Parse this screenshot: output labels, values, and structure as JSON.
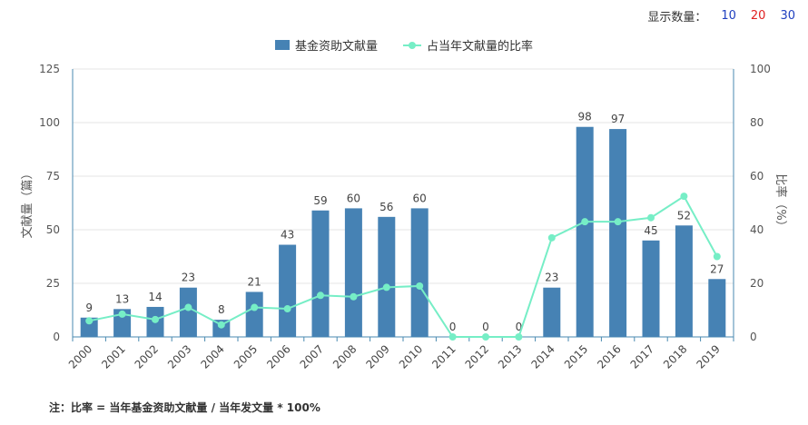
{
  "display_control": {
    "label": "显示数量：",
    "options": [
      {
        "label": "10",
        "color": "#1f3fbf"
      },
      {
        "label": "20",
        "color": "#e02020"
      },
      {
        "label": "30",
        "color": "#1f3fbf"
      }
    ]
  },
  "colors": {
    "bar": "#4682b4",
    "line": "#76eec6",
    "axis": "#4a8ab0"
  },
  "footnote": "注：比率 = 当年基金资助文献量 / 当年发文量 * 100%",
  "chart_data": {
    "type": "bar",
    "categories": [
      "2000",
      "2001",
      "2002",
      "2003",
      "2004",
      "2005",
      "2006",
      "2007",
      "2008",
      "2009",
      "2010",
      "2011",
      "2012",
      "2013",
      "2014",
      "2015",
      "2016",
      "2017",
      "2018",
      "2019"
    ],
    "series": [
      {
        "name": "基金资助文献量",
        "type": "bar",
        "axis": "left",
        "values": [
          9,
          13,
          14,
          23,
          8,
          21,
          43,
          59,
          60,
          56,
          60,
          0,
          0,
          0,
          23,
          98,
          97,
          45,
          52,
          27
        ]
      },
      {
        "name": "占当年文献量的比率",
        "type": "line",
        "axis": "right",
        "values": [
          6,
          8.5,
          6.5,
          11,
          4.5,
          11,
          10.5,
          15.5,
          15,
          18.5,
          19,
          0,
          0,
          0,
          37,
          43,
          43,
          44.5,
          52.5,
          30
        ]
      }
    ],
    "ylabel": "文献量（篇）",
    "ylabel_right": "比率（%）",
    "ylim": [
      0,
      125
    ],
    "yticks": [
      0,
      25,
      50,
      75,
      100,
      125
    ],
    "ylim_right": [
      0,
      100
    ],
    "yticks_right": [
      0,
      20,
      40,
      60,
      80,
      100
    ],
    "grid": true,
    "legend_position": "top-center"
  }
}
